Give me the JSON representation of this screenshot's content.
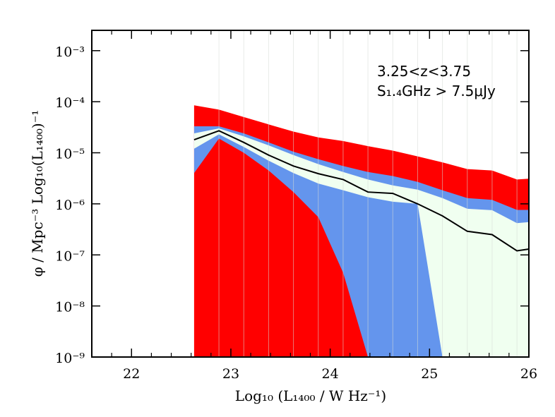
{
  "chart_data": {
    "type": "area",
    "xlabel": "Log₁₀ (L₁₄₀₀ / W Hz⁻¹)",
    "ylabel": "φ / Mpc⁻³ Log₁₀(L₁₄₀₀)⁻¹",
    "xlim": [
      21.6,
      26.0
    ],
    "ylim": [
      1e-09,
      0.0025
    ],
    "y_scale": "log",
    "x_ticks": [
      22,
      23,
      24,
      25,
      26
    ],
    "x_tick_labels": [
      "22",
      "23",
      "24",
      "25",
      "26"
    ],
    "y_ticks": [
      1e-09,
      1e-08,
      1e-07,
      1e-06,
      1e-05,
      0.0001,
      0.001
    ],
    "y_tick_labels": [
      "10⁻⁹",
      "10⁻⁸",
      "10⁻⁷",
      "10⁻⁶",
      "10⁻⁵",
      "10⁻⁴",
      "10⁻³"
    ],
    "annotations": [
      "3.25<z<3.75",
      "S₁.₄GHz > 7.5μJy"
    ],
    "colors": {
      "outer": "#ff0000",
      "middle": "#6495ed",
      "inner": "#f0fff0",
      "line": "#000000",
      "grid": "#d6dcd6"
    },
    "x": [
      22.63,
      22.88,
      23.13,
      23.38,
      23.63,
      23.88,
      24.13,
      24.38,
      24.63,
      24.88,
      25.13,
      25.38,
      25.63,
      25.88,
      26.0
    ],
    "series": [
      {
        "name": "",
        "role": "outer_upper",
        "values": [
          8.5e-05,
          7e-05,
          5e-05,
          3.6e-05,
          2.6e-05,
          2e-05,
          1.7e-05,
          1.35e-05,
          1.1e-05,
          8.5e-06,
          6.5e-06,
          4.8e-06,
          4.5e-06,
          3e-06,
          3.1e-06
        ]
      },
      {
        "name": "",
        "role": "middle_upper",
        "values": [
          3.3e-05,
          3.3e-05,
          2.4e-05,
          1.6e-05,
          1.05e-05,
          7.5e-06,
          5.5e-06,
          4.2e-06,
          3.5e-06,
          2.7e-06,
          1.85e-06,
          1.3e-06,
          1.2e-06,
          7.6e-07,
          7.6e-07
        ]
      },
      {
        "name": "",
        "role": "inner_upper",
        "values": [
          2.4e-05,
          3e-05,
          2.1e-05,
          1.4e-05,
          9e-06,
          6e-06,
          4.2e-06,
          3e-06,
          2.3e-06,
          1.9e-06,
          1.3e-06,
          8e-07,
          7.5e-07,
          4.2e-07,
          4.4e-07
        ]
      },
      {
        "name": "",
        "role": "median",
        "values": [
          1.8e-05,
          2.7e-05,
          1.6e-05,
          9e-06,
          5.5e-06,
          3.9e-06,
          3e-06,
          1.7e-06,
          1.6e-06,
          1e-06,
          5.8e-07,
          2.9e-07,
          2.5e-07,
          1.2e-07,
          1.3e-07
        ]
      },
      {
        "name": "",
        "role": "inner_lower",
        "values": [
          1.2e-05,
          2.3e-05,
          1.3e-05,
          7e-06,
          4e-06,
          2.5e-06,
          1.85e-06,
          1.35e-06,
          1.1e-06,
          1e-06,
          1e-09,
          1e-09,
          1e-09,
          1e-09,
          1e-09
        ]
      },
      {
        "name": "",
        "role": "middle_lower",
        "values": [
          4e-06,
          1.9e-05,
          1e-05,
          4.5e-06,
          1.7e-06,
          5.5e-07,
          4.5e-08,
          1e-09,
          1e-09,
          1e-09,
          1e-09,
          1e-09,
          1e-09,
          1e-09,
          1e-09
        ]
      }
    ]
  }
}
